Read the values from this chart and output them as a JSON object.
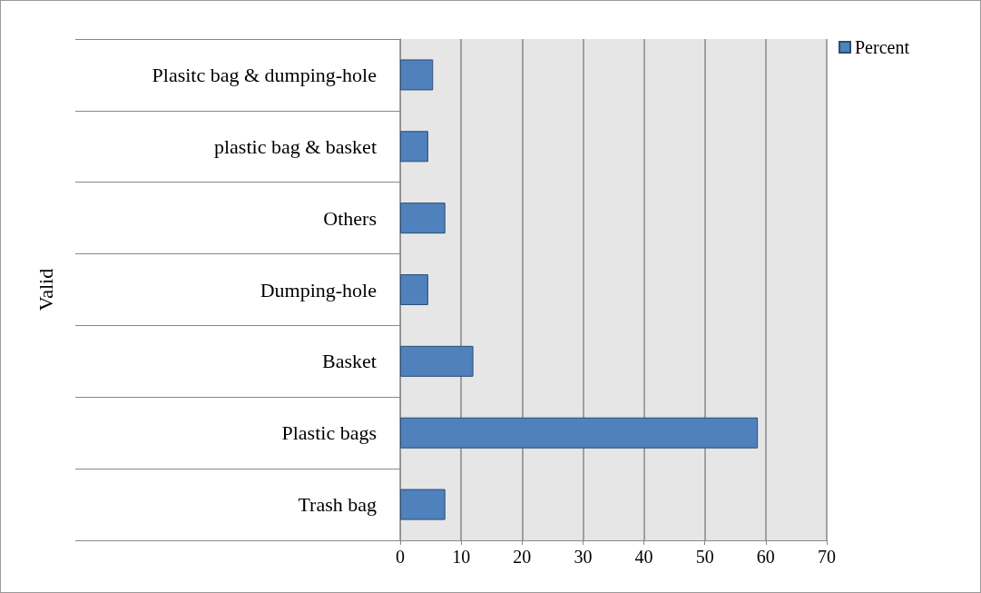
{
  "chart_data": {
    "type": "bar",
    "orientation": "horizontal",
    "ylabel": "Valid",
    "categories": [
      "Plasitc bag & dumping-hole",
      "plastic bag & basket",
      "Others",
      "Dumping-hole",
      "Basket",
      "Plastic bags",
      "Trash bag"
    ],
    "series": [
      {
        "name": "Percent",
        "color": "#4f81bd",
        "values": [
          5.4,
          4.6,
          7.4,
          4.6,
          12.0,
          58.7,
          7.4
        ]
      }
    ],
    "xlim": [
      0,
      70
    ],
    "xticks": [
      0,
      10,
      20,
      30,
      40,
      50,
      60,
      70
    ],
    "grid": "x",
    "legend": "top right"
  }
}
